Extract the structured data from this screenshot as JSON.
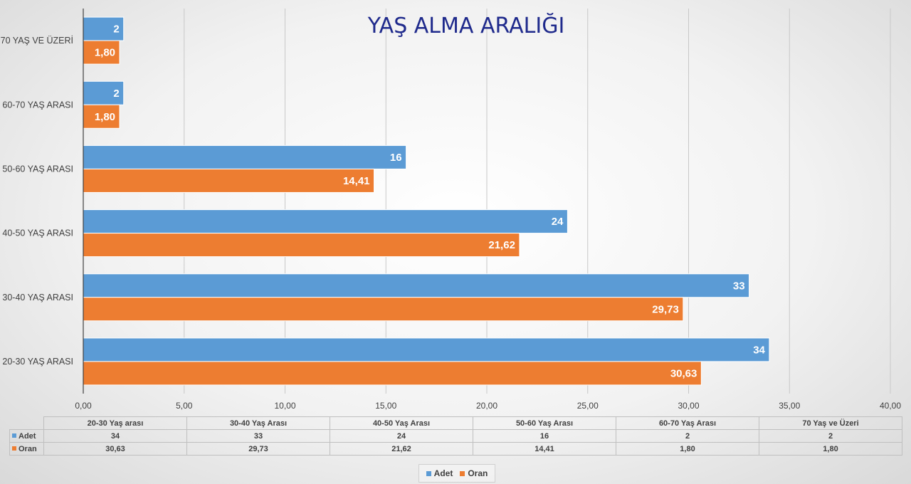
{
  "chart_data": {
    "type": "bar",
    "orientation": "horizontal",
    "title": "YAŞ ALMA ARALIĞI",
    "categories": [
      "20-30 YAŞ ARASI",
      "30-40 YAŞ ARASI",
      "40-50 YAŞ ARASI",
      "50-60 YAŞ ARASI",
      "60-70 YAŞ ARASI",
      "70 YAŞ VE ÜZERİ"
    ],
    "series": [
      {
        "name": "Adet",
        "color": "#5b9bd5",
        "values": [
          34,
          33,
          24,
          16,
          2,
          2
        ],
        "labels": [
          "34",
          "33",
          "24",
          "16",
          "2",
          "2"
        ]
      },
      {
        "name": "Oran",
        "color": "#ed7d31",
        "values": [
          30.63,
          29.73,
          21.62,
          14.41,
          1.8,
          1.8
        ],
        "labels": [
          "30,63",
          "29,73",
          "21,62",
          "14,41",
          "1,80",
          "1,80"
        ]
      }
    ],
    "xlim": [
      0,
      40
    ],
    "x_ticks": [
      "0,00",
      "5,00",
      "10,00",
      "15,00",
      "20,00",
      "25,00",
      "30,00",
      "35,00",
      "40,00"
    ],
    "grid": true,
    "legend_position": "bottom"
  },
  "data_table": {
    "columns": [
      "20-30 Yaş arası",
      "30-40 Yaş Arası",
      "40-50 Yaş Arası",
      "50-60 Yaş Arası",
      "60-70 Yaş Arası",
      "70 Yaş ve Üzeri"
    ],
    "rows": [
      {
        "name": "Adet",
        "color": "#5b9bd5",
        "values": [
          "34",
          "33",
          "24",
          "16",
          "2",
          "2"
        ]
      },
      {
        "name": "Oran",
        "color": "#ed7d31",
        "values": [
          "30,63",
          "29,73",
          "21,62",
          "14,41",
          "1,80",
          "1,80"
        ]
      }
    ]
  },
  "legend": {
    "items": [
      {
        "name": "Adet",
        "color": "#5b9bd5"
      },
      {
        "name": "Oran",
        "color": "#ed7d31"
      }
    ]
  }
}
